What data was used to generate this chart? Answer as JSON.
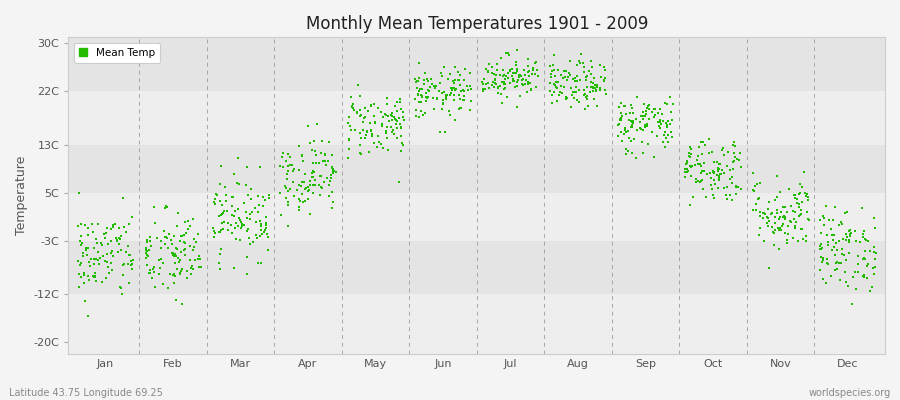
{
  "title": "Monthly Mean Temperatures 1901 - 2009",
  "ylabel": "Temperature",
  "xlabel_labels": [
    "Jan",
    "Feb",
    "Mar",
    "Apr",
    "May",
    "Jun",
    "Jul",
    "Aug",
    "Sep",
    "Oct",
    "Nov",
    "Dec"
  ],
  "ytick_labels": [
    "-20C",
    "-12C",
    "-3C",
    "5C",
    "13C",
    "22C",
    "30C"
  ],
  "ytick_values": [
    -20,
    -12,
    -3,
    5,
    13,
    22,
    30
  ],
  "ylim": [
    -22,
    31
  ],
  "dot_color": "#22BB00",
  "dot_size": 4,
  "bg_color": "#f4f4f4",
  "plot_bg_color": "#f0f0f0",
  "legend_label": "Mean Temp",
  "subtitle_left": "Latitude 43.75 Longitude 69.25",
  "subtitle_right": "worldspecies.org",
  "n_years": 109,
  "monthly_means": [
    -5.5,
    -5.5,
    1.0,
    8.0,
    16.5,
    21.5,
    24.5,
    23.0,
    16.5,
    9.0,
    1.5,
    -4.5
  ],
  "monthly_stds": [
    3.8,
    3.8,
    3.5,
    3.2,
    2.8,
    2.2,
    1.8,
    2.0,
    2.5,
    2.8,
    3.2,
    3.5
  ],
  "seed": 42,
  "grid_color": "#888888",
  "stripe_colors": [
    "#eeeeee",
    "#e4e4e4"
  ]
}
